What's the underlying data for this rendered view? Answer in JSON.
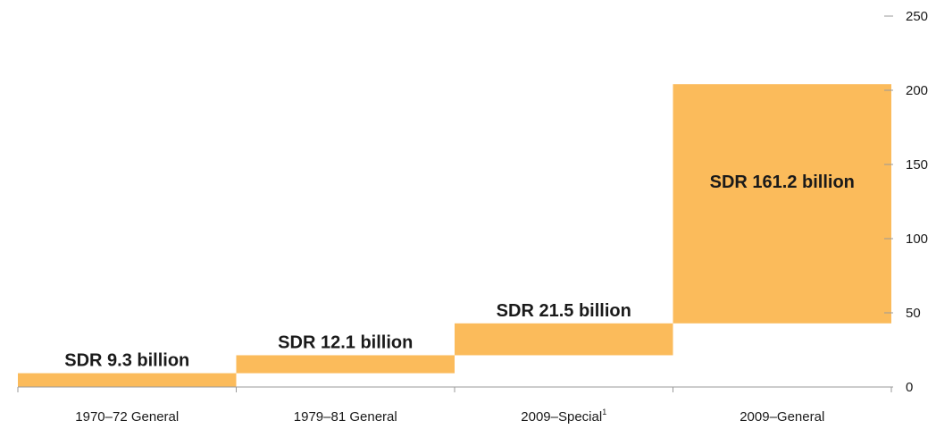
{
  "colors": {
    "bar": "#FBBB5B",
    "axis": "#999999",
    "text": "#1a1a1a"
  },
  "chart_data": {
    "type": "bar",
    "subtype": "waterfall",
    "categories": [
      "1970–72 General",
      "1979–81 General",
      "2009–Special",
      "2009–General"
    ],
    "category_footnotes": [
      "",
      "",
      "1",
      ""
    ],
    "values": [
      9.3,
      12.1,
      21.5,
      161.2
    ],
    "bar_labels": [
      "SDR 9.3 billion",
      "SDR 12.1 billion",
      "SDR 21.5 billion",
      "SDR 161.2 billion"
    ],
    "yticks": [
      "0",
      "50",
      "100",
      "150",
      "200",
      "250"
    ],
    "ylim": [
      0,
      250
    ],
    "yaxis_position": "right",
    "grid": false,
    "title": "",
    "xlabel": "",
    "ylabel": ""
  }
}
